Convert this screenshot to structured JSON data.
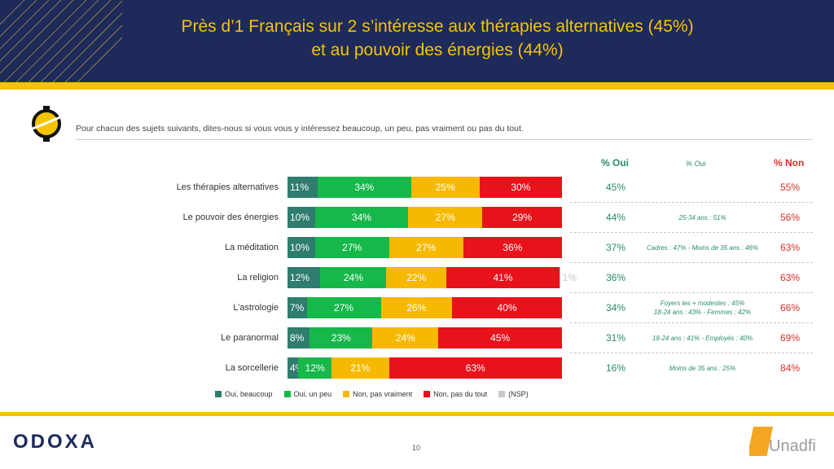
{
  "header": {
    "title_line1": "Près d’1 Français sur 2 s’intéresse aux thérapies alternatives (45%)",
    "title_line2": "et au pouvoir des énergies (44%)"
  },
  "question": "Pour chacun des sujets suivants, dites-nous si vous vous y intéressez beaucoup, un peu, pas vraiment ou pas du tout.",
  "columns": {
    "oui": "% Oui",
    "oui_sub": "% Oui",
    "non": "% Non"
  },
  "colors": {
    "beaucoup": "#2e7d6e",
    "un_peu": "#17b84a",
    "pas_vraiment": "#f7b900",
    "pas_du_tout": "#e8121b",
    "nsp": "#c9c9c9",
    "header_bg": "#1e2a5a",
    "accent": "#f5c400"
  },
  "rows": [
    {
      "label": "Les thérapies alternatives",
      "oui": "45%",
      "detail": "",
      "non": "55%"
    },
    {
      "label": "Le pouvoir des énergies",
      "oui": "44%",
      "detail": "25-34 ans : 51%",
      "non": "56%"
    },
    {
      "label": "La méditation",
      "oui": "37%",
      "detail": "Cadres : 47% - Moins de 35 ans : 46%",
      "non": "63%"
    },
    {
      "label": "La religion",
      "oui": "36%",
      "detail": "",
      "non": "63%"
    },
    {
      "label": "L’astrologie",
      "oui": "34%",
      "detail": "Foyers les + modestes : 45%\n18-24 ans : 43% - Femmes : 42%",
      "non": "66%"
    },
    {
      "label": "Le paranormal",
      "oui": "31%",
      "detail": "18-24 ans : 41% - Employés : 40%",
      "non": "69%"
    },
    {
      "label": "La sorcellerie",
      "oui": "16%",
      "detail": "Moins de 35 ans : 25%",
      "non": "84%"
    }
  ],
  "chart_data": {
    "type": "bar",
    "orientation": "horizontal",
    "stacked": true,
    "categories": [
      "Les thérapies alternatives",
      "Le pouvoir des énergies",
      "La méditation",
      "La religion",
      "L’astrologie",
      "Le paranormal",
      "La sorcellerie"
    ],
    "series": [
      {
        "name": "Oui, beaucoup",
        "values": [
          11,
          10,
          10,
          12,
          7,
          8,
          4
        ]
      },
      {
        "name": "Oui, un peu",
        "values": [
          34,
          34,
          27,
          24,
          27,
          23,
          12
        ]
      },
      {
        "name": "Non, pas vraiment",
        "values": [
          25,
          27,
          27,
          22,
          26,
          24,
          21
        ]
      },
      {
        "name": "Non, pas du tout",
        "values": [
          30,
          29,
          36,
          41,
          40,
          45,
          63
        ]
      },
      {
        "name": "(NSP)",
        "values": [
          0,
          0,
          0,
          1,
          0,
          0,
          0
        ]
      }
    ],
    "value_suffix": "%",
    "legend": "bottom"
  },
  "footer": {
    "logo_left": "ODOXA",
    "page_number": "10",
    "logo_right": "Unadfi"
  }
}
